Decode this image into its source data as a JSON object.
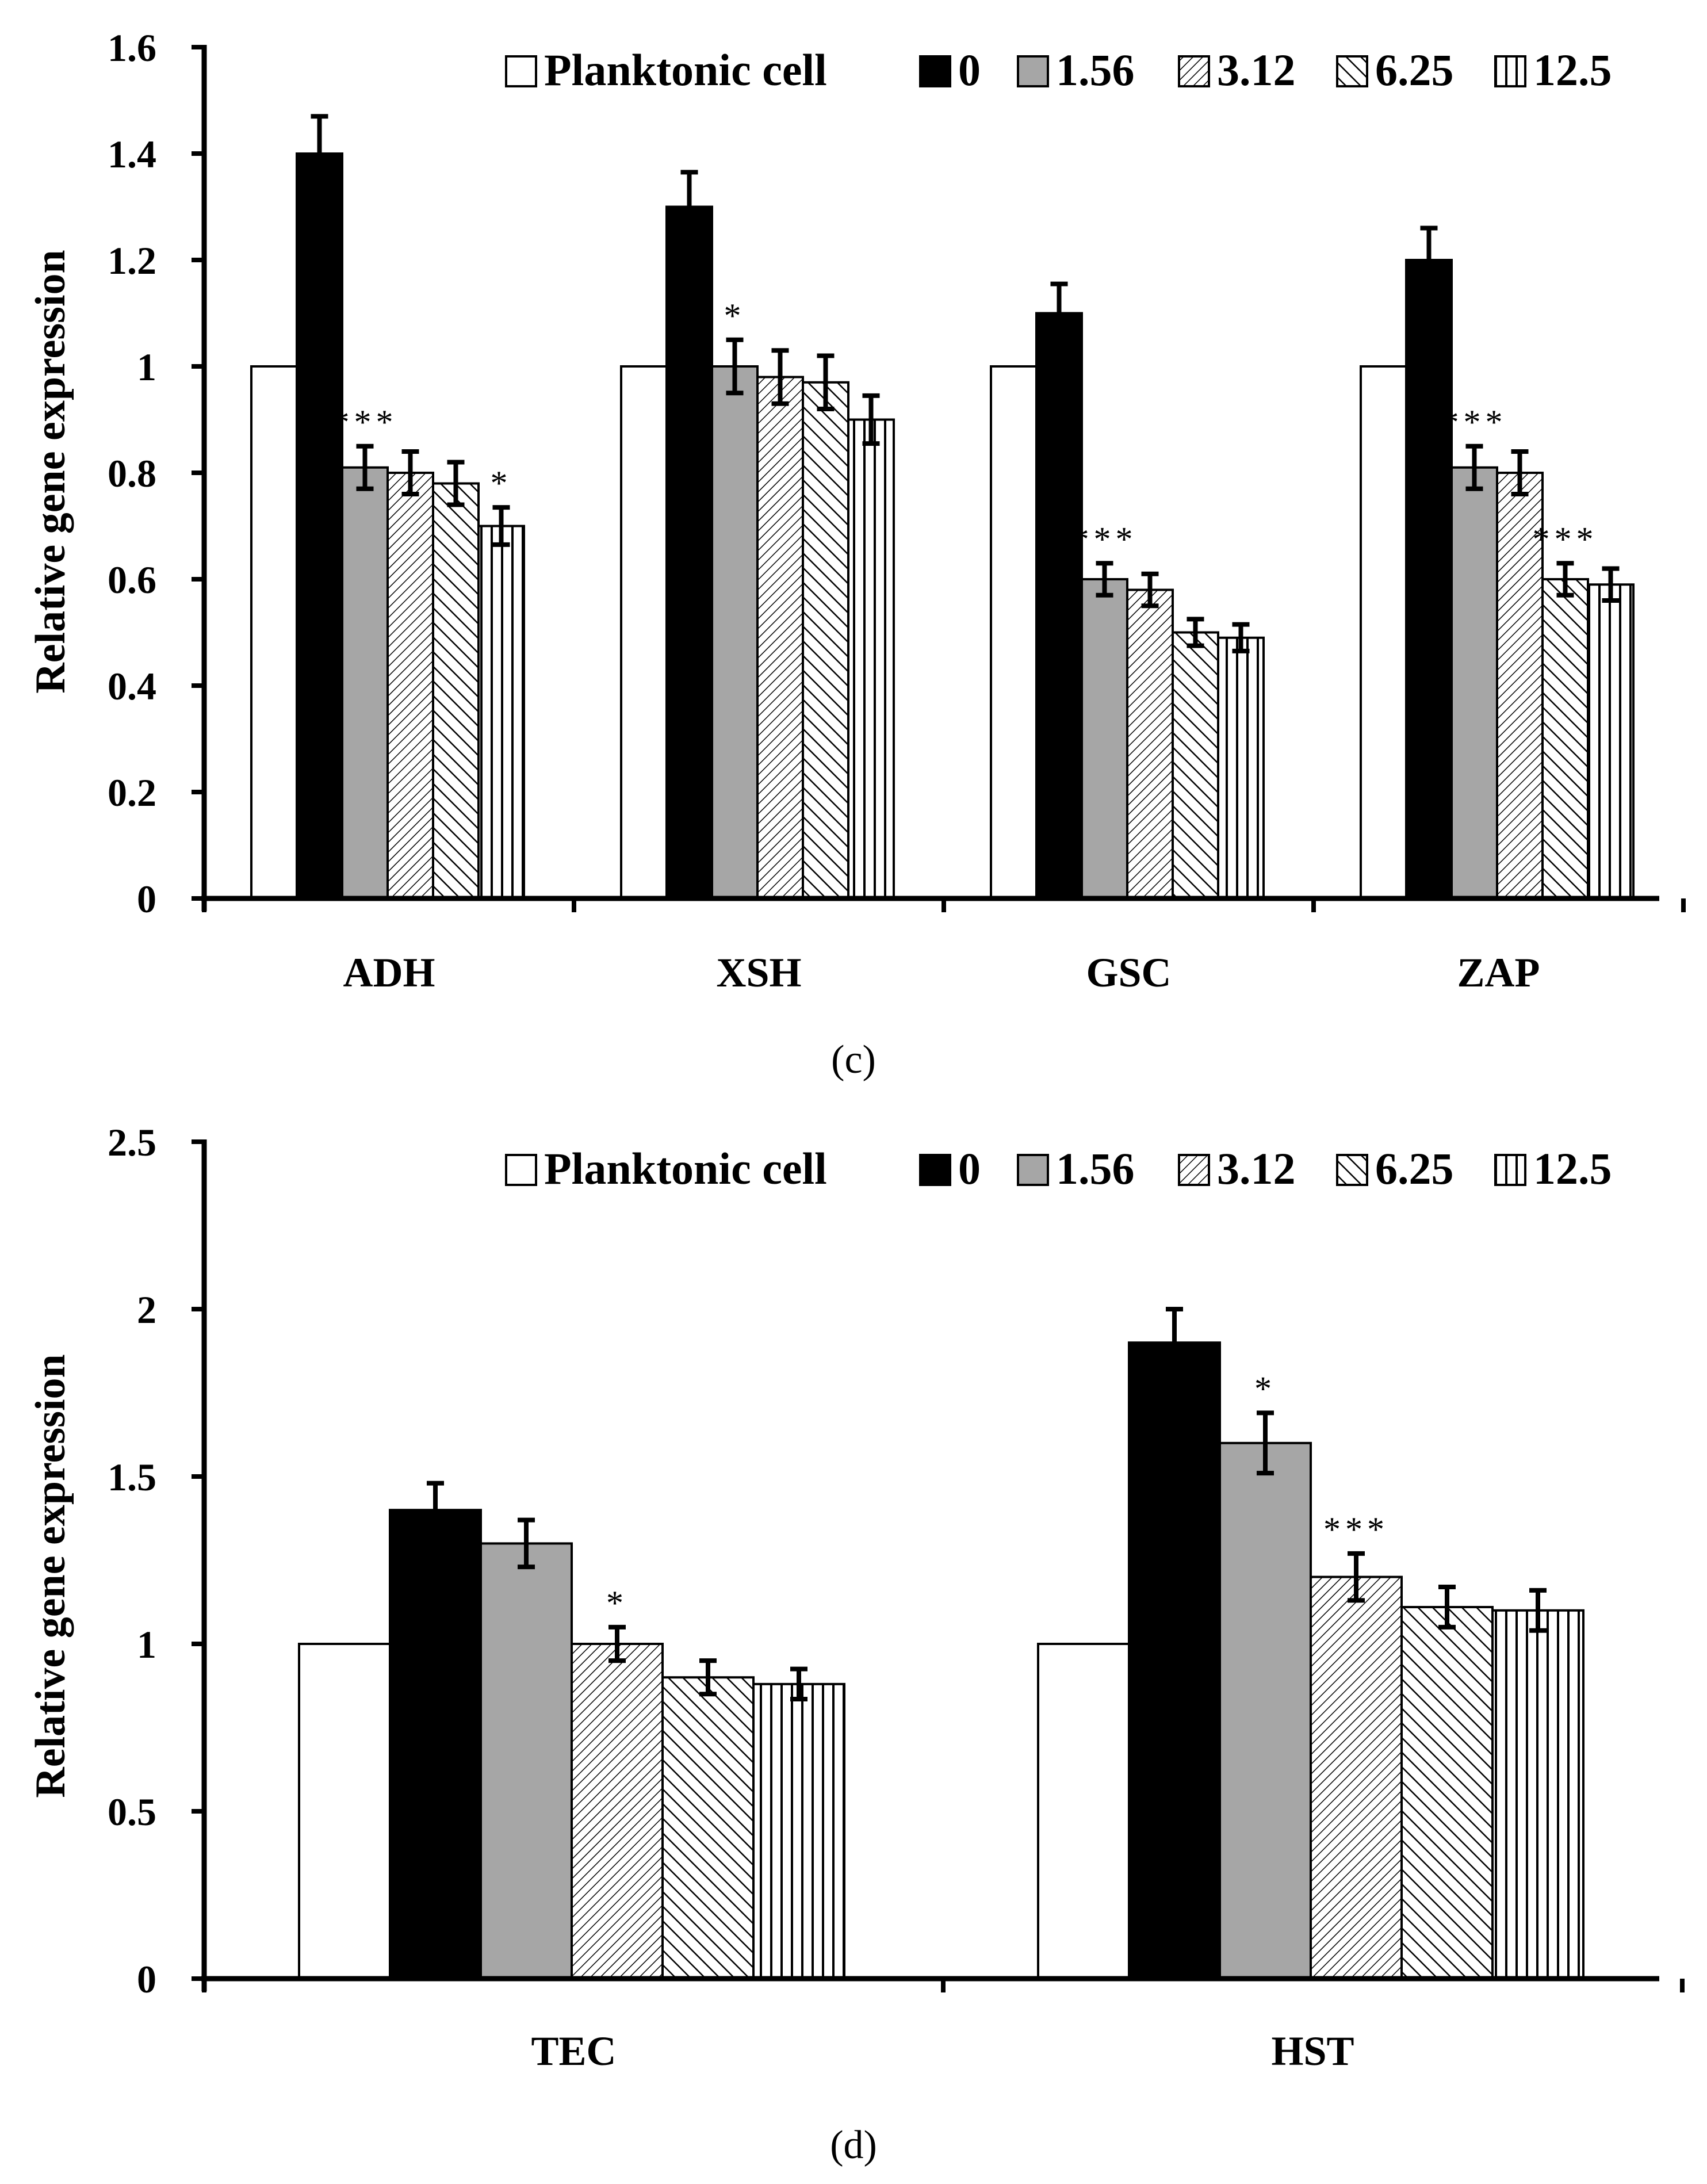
{
  "colors": {
    "planktonic": "#ffffff",
    "zero": "#000000",
    "c156": "#a6a6a6",
    "outline": "#000000"
  },
  "chart_data": [
    {
      "type": "bar",
      "panel_label": "(c)",
      "ylabel": "Relative gene expression",
      "xlabel": "",
      "ylim": [
        0,
        1.6
      ],
      "yticks": [
        0,
        0.2,
        0.4,
        0.6,
        0.8,
        1,
        1.2,
        1.4,
        1.6
      ],
      "ytick_labels": [
        "0",
        "0.2",
        "0.4",
        "0.6",
        "0.8",
        "1",
        "1.2",
        "1.4",
        "1.6"
      ],
      "legend_position": "top",
      "categories": [
        "ADH",
        "XSH",
        "GSC",
        "ZAP"
      ],
      "series": [
        {
          "name": "Planktonic cell",
          "pattern": "white",
          "values": [
            1.0,
            1.0,
            1.0,
            1.0
          ],
          "errors": [
            null,
            null,
            null,
            null
          ]
        },
        {
          "name": "0",
          "pattern": "black",
          "values": [
            1.4,
            1.3,
            1.1,
            1.2
          ],
          "errors": [
            0.07,
            0.065,
            0.055,
            0.06
          ]
        },
        {
          "name": "1.56",
          "pattern": "gray",
          "values": [
            0.81,
            1.0,
            0.6,
            0.81
          ],
          "errors": [
            0.04,
            0.05,
            0.03,
            0.04
          ]
        },
        {
          "name": "3.12",
          "pattern": "diag-fine",
          "values": [
            0.8,
            0.98,
            0.58,
            0.8
          ],
          "errors": [
            0.04,
            0.05,
            0.03,
            0.04
          ]
        },
        {
          "name": "6.25",
          "pattern": "diag-wide",
          "values": [
            0.78,
            0.97,
            0.5,
            0.6
          ],
          "errors": [
            0.04,
            0.05,
            0.025,
            0.03
          ]
        },
        {
          "name": "12.5",
          "pattern": "vertical",
          "values": [
            0.7,
            0.9,
            0.49,
            0.59
          ],
          "errors": [
            0.035,
            0.045,
            0.025,
            0.03
          ]
        }
      ],
      "annotations": [
        {
          "text": "***",
          "category": "ADH",
          "series": "1.56"
        },
        {
          "text": "*",
          "category": "ADH",
          "series": "12.5"
        },
        {
          "text": "*",
          "category": "XSH",
          "series": "1.56"
        },
        {
          "text": "***",
          "category": "GSC",
          "series": "1.56"
        },
        {
          "text": "***",
          "category": "ZAP",
          "series": "1.56"
        },
        {
          "text": "***",
          "category": "ZAP",
          "series": "6.25"
        }
      ]
    },
    {
      "type": "bar",
      "panel_label": "(d)",
      "ylabel": "Relative gene expression",
      "xlabel": "",
      "ylim": [
        0,
        2.5
      ],
      "yticks": [
        0,
        0.5,
        1,
        1.5,
        2,
        2.5
      ],
      "ytick_labels": [
        "0",
        "0.5",
        "1",
        "1.5",
        "2",
        "2.5"
      ],
      "legend_position": "top",
      "categories": [
        "TEC",
        "HST"
      ],
      "series": [
        {
          "name": "Planktonic cell",
          "pattern": "white",
          "values": [
            1.0,
            1.0
          ],
          "errors": [
            null,
            null
          ]
        },
        {
          "name": "0",
          "pattern": "black",
          "values": [
            1.4,
            1.9
          ],
          "errors": [
            0.08,
            0.1
          ]
        },
        {
          "name": "1.56",
          "pattern": "gray",
          "values": [
            1.3,
            1.6
          ],
          "errors": [
            0.07,
            0.09
          ]
        },
        {
          "name": "3.12",
          "pattern": "diag-fine",
          "values": [
            1.0,
            1.2
          ],
          "errors": [
            0.05,
            0.07
          ]
        },
        {
          "name": "6.25",
          "pattern": "diag-wide",
          "values": [
            0.9,
            1.11
          ],
          "errors": [
            0.05,
            0.06
          ]
        },
        {
          "name": "12.5",
          "pattern": "vertical",
          "values": [
            0.88,
            1.1
          ],
          "errors": [
            0.045,
            0.06
          ]
        }
      ],
      "annotations": [
        {
          "text": "*",
          "category": "TEC",
          "series": "3.12"
        },
        {
          "text": "*",
          "category": "HST",
          "series": "1.56"
        },
        {
          "text": "***",
          "category": "HST",
          "series": "3.12"
        }
      ]
    }
  ]
}
